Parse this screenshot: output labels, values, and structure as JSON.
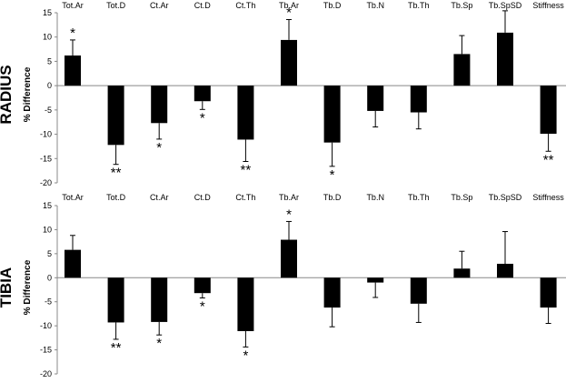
{
  "chart_data": [
    {
      "type": "bar",
      "panel_label": "RADIUS",
      "ylabel": "% Difference",
      "ylim": [
        -20,
        15
      ],
      "yticks": [
        15,
        10,
        5,
        0,
        -5,
        -10,
        -15,
        -20
      ],
      "categories": [
        "Tot.Ar",
        "Tot.D",
        "Ct.Ar",
        "Ct.D",
        "Ct.Th",
        "Tb.Ar",
        "Tb.D",
        "Tb.N",
        "Tb.Th",
        "Tb.Sp",
        "Tb.SpSD",
        "Stiffness"
      ],
      "values": [
        6.2,
        -12.2,
        -7.7,
        -3.2,
        -11.1,
        9.4,
        -11.7,
        -5.2,
        -5.5,
        6.5,
        10.9,
        -9.9
      ],
      "error": [
        3.2,
        4.0,
        3.3,
        1.7,
        4.5,
        4.2,
        4.9,
        3.3,
        3.4,
        3.8,
        4.5,
        3.6
      ],
      "significance": [
        "*",
        "**",
        "*",
        "*",
        "**",
        "*",
        "*",
        "",
        "",
        "",
        "",
        "**"
      ],
      "bar_color": "#000000"
    },
    {
      "type": "bar",
      "panel_label": "TIBIA",
      "ylabel": "% Difference",
      "ylim": [
        -20,
        15
      ],
      "yticks": [
        15,
        10,
        5,
        0,
        -5,
        -10,
        -15,
        -20
      ],
      "categories": [
        "Tot.Ar",
        "Tot.D",
        "Ct.Ar",
        "Ct.D",
        "Ct.Th",
        "Tb.Ar",
        "Tb.D",
        "Tb.N",
        "Tb.Th",
        "Tb.Sp",
        "Tb.SpSD",
        "Stiffness"
      ],
      "values": [
        5.8,
        -9.3,
        -9.2,
        -3.2,
        -11.1,
        7.9,
        -6.2,
        -1.0,
        -5.4,
        1.9,
        2.9,
        -6.2
      ],
      "error": [
        3.0,
        3.5,
        2.7,
        1.0,
        3.3,
        3.8,
        4.0,
        3.1,
        3.9,
        3.6,
        6.7,
        3.3
      ],
      "significance": [
        "",
        "**",
        "*",
        "*",
        "*",
        "*",
        "",
        "",
        "",
        "",
        "",
        ""
      ],
      "bar_color": "#000000"
    }
  ]
}
